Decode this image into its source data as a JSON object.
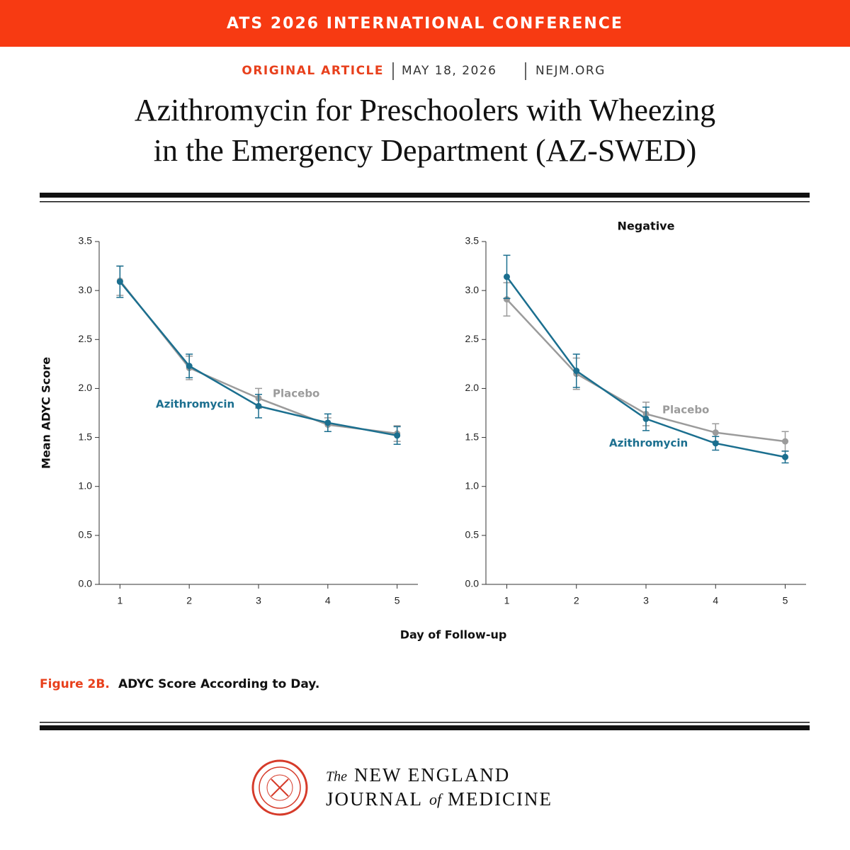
{
  "header": {
    "banner": "ATS 2026 INTERNATIONAL CONFERENCE",
    "section": "ORIGINAL ARTICLE",
    "date": "MAY 18, 2026",
    "site": "NEJM.ORG",
    "title_line1": "Azithromycin for Preschoolers with Wheezing",
    "title_line2": "in the Emergency Department (AZ-SWED)"
  },
  "shared_x_label": "Day of Follow-up",
  "caption": {
    "label": "Figure 2B.",
    "text": "ADYC Score According to Day."
  },
  "logo": {
    "the": "The",
    "line1": "NEW ENGLAND",
    "journal": "JOURNAL",
    "of": "of",
    "medicine": "MEDICINE"
  },
  "chart_data": [
    {
      "type": "line",
      "y_label": "Mean ADYC Score",
      "x": [
        1,
        2,
        3,
        4,
        5
      ],
      "xlim": [
        0.7,
        5.3
      ],
      "xticks": [
        1,
        2,
        3,
        4,
        5
      ],
      "ylim": [
        0,
        3.5
      ],
      "yticks": [
        {
          "value": 0,
          "label": "0.0"
        },
        0.5,
        {
          "value": 1,
          "label": "1.0"
        },
        1.5,
        {
          "value": 2,
          "label": "2.0"
        },
        2.5,
        {
          "value": 3,
          "label": "3.0"
        },
        3.5
      ],
      "series": [
        {
          "name": "Placebo",
          "color": "#9b9b9b",
          "values": [
            3.1,
            2.21,
            1.9,
            1.63,
            1.54
          ],
          "errors": [
            0.15,
            0.12,
            0.1,
            0.07,
            0.08
          ]
        },
        {
          "name": "Azithromycin",
          "color": "#1b6f8f",
          "values": [
            3.09,
            2.23,
            1.82,
            1.65,
            1.52
          ],
          "errors": [
            0.16,
            0.12,
            0.12,
            0.09,
            0.09
          ]
        }
      ]
    },
    {
      "type": "line",
      "title": "Negative",
      "x": [
        1,
        2,
        3,
        4,
        5
      ],
      "xlim": [
        0.7,
        5.3
      ],
      "xticks": [
        1,
        2,
        3,
        4,
        5
      ],
      "ylim": [
        0,
        3.5
      ],
      "yticks": [
        {
          "value": 0,
          "label": "0.0"
        },
        0.5,
        {
          "value": 1,
          "label": "1.0"
        },
        1.5,
        {
          "value": 2,
          "label": "2.0"
        },
        2.5,
        {
          "value": 3,
          "label": "3.0"
        },
        3.5
      ],
      "series": [
        {
          "name": "Placebo",
          "color": "#9b9b9b",
          "values": [
            2.91,
            2.15,
            1.74,
            1.55,
            1.46
          ],
          "errors": [
            0.17,
            0.16,
            0.12,
            0.09,
            0.1
          ]
        },
        {
          "name": "Azithromycin",
          "color": "#1b6f8f",
          "values": [
            3.14,
            2.18,
            1.69,
            1.44,
            1.3
          ],
          "errors": [
            0.22,
            0.17,
            0.12,
            0.07,
            0.06
          ]
        }
      ]
    }
  ]
}
